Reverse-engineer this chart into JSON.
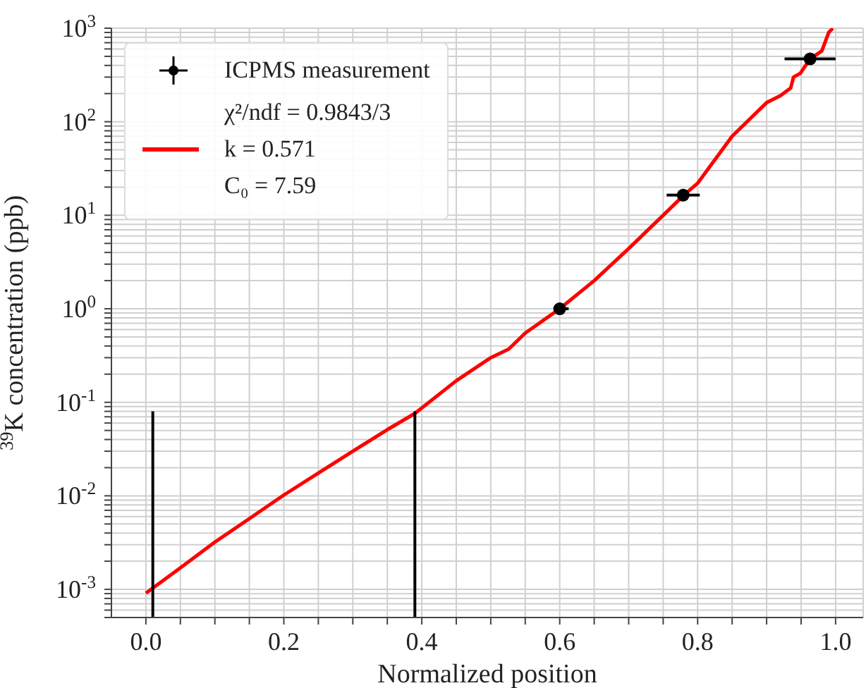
{
  "chart_data": {
    "type": "line",
    "xlabel": "Normalized position",
    "ylabel": "$^{39}$K concentration (ppb)",
    "log": "y",
    "grid": true,
    "legend": "top left",
    "xlim": [
      -0.05,
      1.04
    ],
    "ylim": [
      0.0005,
      1000
    ],
    "xticks": [
      {
        "value": 0.05,
        "label": null
      },
      {
        "value": 0.0,
        "label": "0.0"
      },
      {
        "value": 0.1,
        "label": null
      },
      {
        "value": 0.15,
        "label": null
      },
      {
        "value": 0.2,
        "label": "0.2"
      },
      {
        "value": 0.25,
        "label": null
      },
      {
        "value": 0.3,
        "label": null
      },
      {
        "value": 0.35,
        "label": null
      },
      {
        "value": 0.4,
        "label": "0.4"
      },
      {
        "value": 0.45,
        "label": null
      },
      {
        "value": 0.5,
        "label": null
      },
      {
        "value": 0.55,
        "label": null
      },
      {
        "value": 0.6,
        "label": "0.6"
      },
      {
        "value": 0.65,
        "label": null
      },
      {
        "value": 0.7,
        "label": null
      },
      {
        "value": 0.75,
        "label": null
      },
      {
        "value": 0.8,
        "label": "0.8"
      },
      {
        "value": 0.85,
        "label": null
      },
      {
        "value": 0.9,
        "label": null
      },
      {
        "value": 0.95,
        "label": null
      },
      {
        "value": 1.0,
        "label": "1.0"
      }
    ],
    "yticks": [
      {
        "value": 0.0005,
        "label": null
      },
      {
        "value": 0.0006,
        "label": null
      },
      {
        "value": 0.0007,
        "label": null
      },
      {
        "value": 0.0008,
        "label": null
      },
      {
        "value": 0.0009,
        "label": null
      },
      {
        "value": 0.001,
        "label": "10$^{-3}$"
      },
      {
        "value": 0.002,
        "label": null
      },
      {
        "value": 0.003,
        "label": null
      },
      {
        "value": 0.004,
        "label": null
      },
      {
        "value": 0.005,
        "label": null
      },
      {
        "value": 0.006,
        "label": null
      },
      {
        "value": 0.007,
        "label": null
      },
      {
        "value": 0.008,
        "label": null
      },
      {
        "value": 0.009,
        "label": null
      },
      {
        "value": 0.01,
        "label": "10$^{-2}$"
      },
      {
        "value": 0.02,
        "label": null
      },
      {
        "value": 0.03,
        "label": null
      },
      {
        "value": 0.04,
        "label": null
      },
      {
        "value": 0.05,
        "label": null
      },
      {
        "value": 0.06,
        "label": null
      },
      {
        "value": 0.07,
        "label": null
      },
      {
        "value": 0.08,
        "label": null
      },
      {
        "value": 0.09,
        "label": null
      },
      {
        "value": 0.1,
        "label": "10$^{-1}$"
      },
      {
        "value": 0.2,
        "label": null
      },
      {
        "value": 0.3,
        "label": null
      },
      {
        "value": 0.4,
        "label": null
      },
      {
        "value": 0.5,
        "label": null
      },
      {
        "value": 0.6,
        "label": null
      },
      {
        "value": 0.7,
        "label": null
      },
      {
        "value": 0.8,
        "label": null
      },
      {
        "value": 0.9,
        "label": null
      },
      {
        "value": 1,
        "label": "10$^{0}$"
      },
      {
        "value": 2,
        "label": null
      },
      {
        "value": 3,
        "label": null
      },
      {
        "value": 4,
        "label": null
      },
      {
        "value": 5,
        "label": null
      },
      {
        "value": 6,
        "label": null
      },
      {
        "value": 7,
        "label": null
      },
      {
        "value": 8,
        "label": null
      },
      {
        "value": 9,
        "label": null
      },
      {
        "value": 10,
        "label": "10$^{1}$"
      },
      {
        "value": 20,
        "label": null
      },
      {
        "value": 30,
        "label": null
      },
      {
        "value": 40,
        "label": null
      },
      {
        "value": 50,
        "label": null
      },
      {
        "value": 60,
        "label": null
      },
      {
        "value": 70,
        "label": null
      },
      {
        "value": 80,
        "label": null
      },
      {
        "value": 90,
        "label": null
      },
      {
        "value": 100,
        "label": "10$^{2}$"
      },
      {
        "value": 200,
        "label": null
      },
      {
        "value": 300,
        "label": null
      },
      {
        "value": 400,
        "label": null
      },
      {
        "value": 500,
        "label": null
      },
      {
        "value": 600,
        "label": null
      },
      {
        "value": 700,
        "label": null
      },
      {
        "value": 800,
        "label": null
      },
      {
        "value": 900,
        "label": null
      },
      {
        "value": 1000,
        "label": "10$^{3}$"
      }
    ],
    "series": [
      {
        "type": "scatter",
        "name": "ICPMS measurement",
        "color": "#000000",
        "marker": "circle",
        "x": [
          0.6,
          0.779,
          0.963
        ],
        "values": [
          1.0,
          16.4,
          470
        ],
        "xerrors": [
          [
            0.591,
            0.613
          ],
          [
            0.755,
            0.803
          ],
          [
            0.926,
            1.0
          ]
        ]
      },
      {
        "name": "χ²/ndf = 0.9843/3\nk = 0.571\nC₀ = 7.59",
        "color": "#ff0000",
        "marker": "none",
        "x": [
          0,
          0.05,
          0.1,
          0.15,
          0.2,
          0.25,
          0.3,
          0.35,
          0.39,
          0.45,
          0.5,
          0.526,
          0.55,
          0.6,
          0.65,
          0.7,
          0.75,
          0.78,
          0.8,
          0.85,
          0.9,
          0.92,
          0.935,
          0.939,
          0.949,
          0.963,
          0.98,
          0.99,
          0.996
        ],
        "values": [
          0.00091,
          0.0017,
          0.0032,
          0.0057,
          0.0102,
          0.0175,
          0.03,
          0.051,
          0.076,
          0.17,
          0.3,
          0.37,
          0.55,
          1.0,
          2.0,
          4.4,
          10,
          16.4,
          22,
          70,
          160,
          190,
          230,
          300,
          330,
          470,
          570,
          900,
          1000
        ]
      },
      {
        "color": "#000000",
        "marker": "none",
        "x": [
          0.01,
          0.01
        ],
        "values": [
          0.0005,
          0.08
        ]
      },
      {
        "color": "#000000",
        "marker": "none",
        "x": [
          0.39,
          0.39
        ],
        "values": [
          0.0005,
          0.08
        ]
      }
    ]
  }
}
